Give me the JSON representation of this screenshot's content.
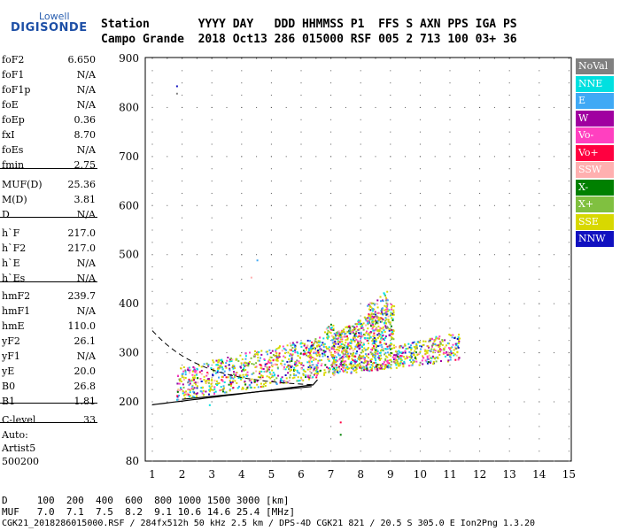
{
  "logo": {
    "line1": "Lowell",
    "line2": "DIGISONDE"
  },
  "header": {
    "line1": "Station       YYYY DAY   DDD HHMMSS P1  FFS S AXN PPS IGA PS",
    "line2": "Campo Grande  2018 Oct13 286 015000 RSF 005 2 713 100 03+ 36"
  },
  "params": [
    {
      "key": "foF2",
      "value": "6.650"
    },
    {
      "key": "foF1",
      "value": "N/A"
    },
    {
      "key": "foF1p",
      "value": "N/A"
    },
    {
      "key": "foE",
      "value": "N/A"
    },
    {
      "key": "foEp",
      "value": "0.36"
    },
    {
      "key": "fxI",
      "value": "8.70"
    },
    {
      "key": "foEs",
      "value": "N/A"
    },
    {
      "key": "fmin",
      "value": "2.75"
    },
    {
      "key": "MUF(D)",
      "value": "25.36"
    },
    {
      "key": "M(D)",
      "value": "3.81"
    },
    {
      "key": "D",
      "value": "N/A"
    },
    {
      "key": "h`F",
      "value": "217.0"
    },
    {
      "key": "h`F2",
      "value": "217.0"
    },
    {
      "key": "h`E",
      "value": "N/A"
    },
    {
      "key": "h`Es",
      "value": "N/A"
    },
    {
      "key": "hmF2",
      "value": "239.7"
    },
    {
      "key": "hmF1",
      "value": "N/A"
    },
    {
      "key": "hmE",
      "value": "110.0"
    },
    {
      "key": "yF2",
      "value": "26.1"
    },
    {
      "key": "yF1",
      "value": "N/A"
    },
    {
      "key": "yE",
      "value": "20.0"
    },
    {
      "key": "B0",
      "value": "26.8"
    },
    {
      "key": "B1",
      "value": "1.81"
    },
    {
      "key": "C-level",
      "value": "33"
    }
  ],
  "autoscale": {
    "line1": "Auto:",
    "line2": "Artist5",
    "line3": "500200"
  },
  "legend": [
    {
      "label": "NoVal",
      "color": "#808080"
    },
    {
      "label": "NNE",
      "color": "#00e0e0"
    },
    {
      "label": "E",
      "color": "#3fa9f5"
    },
    {
      "label": "W",
      "color": "#a000a0"
    },
    {
      "label": "Vo-",
      "color": "#ff40c0"
    },
    {
      "label": "Vo+",
      "color": "#ff0040"
    },
    {
      "label": "SSW",
      "color": "#ffb0b0"
    },
    {
      "label": "X-",
      "color": "#008000"
    },
    {
      "label": "X+",
      "color": "#80c040"
    },
    {
      "label": "SSE",
      "color": "#d8d800"
    },
    {
      "label": "NNW",
      "color": "#1010c0"
    }
  ],
  "chart_data": {
    "type": "scatter",
    "xlim": [
      1,
      15
    ],
    "ylim": [
      80,
      900
    ],
    "xticks": [
      1,
      2,
      3,
      4,
      5,
      6,
      7,
      8,
      9,
      10,
      11,
      12,
      13,
      14,
      15
    ],
    "yticks": [
      80,
      200,
      300,
      400,
      500,
      600,
      700,
      800,
      900
    ],
    "grid": true,
    "xlabel": "",
    "ylabel": ""
  },
  "footer": {
    "d_row": "D     100  200  400  600  800 1000 1500 3000 [km]",
    "muf_row": "MUF   7.0  7.1  7.5  8.2  9.1 10.6 14.6 25.4 [MHz]",
    "info": "CGK21_2018286015000.RSF / 284fx512h 50 kHz 2.5 km / DPS-4D CGK21 821 / 20.5 S 305.0 E Ion2Png 1.3.20"
  }
}
